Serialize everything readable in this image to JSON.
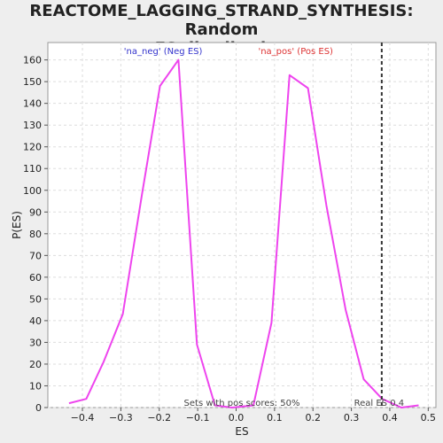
{
  "chart_data": {
    "type": "line",
    "title_line1": "REACTOME_LAGGING_STRAND_SYNTHESIS: Random",
    "title_line2": "ES distribution",
    "xlabel": "ES",
    "ylabel": "P(ES)",
    "xlim": [
      -0.49,
      0.52
    ],
    "ylim": [
      0,
      168
    ],
    "x_ticks": [
      -0.4,
      -0.3,
      -0.2,
      -0.1,
      0.0,
      0.1,
      0.2,
      0.3,
      0.4,
      0.5
    ],
    "x_tick_labels": [
      "−0.4",
      "−0.3",
      "−0.2",
      "−0.1",
      "0.0",
      "0.1",
      "0.2",
      "0.3",
      "0.4",
      "0.5"
    ],
    "y_ticks": [
      0,
      10,
      20,
      30,
      40,
      50,
      60,
      70,
      80,
      90,
      100,
      110,
      120,
      130,
      140,
      150,
      160
    ],
    "y_tick_labels": [
      "0",
      "10",
      "20",
      "30",
      "40",
      "50",
      "60",
      "70",
      "80",
      "90",
      "100",
      "110",
      "120",
      "130",
      "140",
      "150",
      "160"
    ],
    "grid": true,
    "series": [
      {
        "color": "#ee44ee",
        "points": [
          [
            -0.435,
            2
          ],
          [
            -0.39,
            4
          ],
          [
            -0.345,
            21
          ],
          [
            -0.295,
            43
          ],
          [
            -0.245,
            98
          ],
          [
            -0.198,
            148
          ],
          [
            -0.15,
            160
          ],
          [
            -0.102,
            29
          ],
          [
            -0.055,
            1
          ],
          [
            -0.01,
            0
          ],
          [
            0.045,
            1
          ],
          [
            0.092,
            39
          ],
          [
            0.139,
            153
          ],
          [
            0.187,
            147
          ],
          [
            0.235,
            93
          ],
          [
            0.285,
            45
          ],
          [
            0.332,
            13
          ],
          [
            0.38,
            4
          ],
          [
            0.43,
            0
          ],
          [
            0.475,
            1
          ]
        ]
      }
    ],
    "legend": [
      {
        "label": "'na_neg' (Neg ES)",
        "color": "#3333cc"
      },
      {
        "label": "'na_pos' (Pos ES)",
        "color": "#dd3333"
      }
    ],
    "real_es": {
      "value": 0.379,
      "label": "Real ES 0.4",
      "color": "#333333"
    },
    "note": "Sets with pos scores: 50%"
  }
}
